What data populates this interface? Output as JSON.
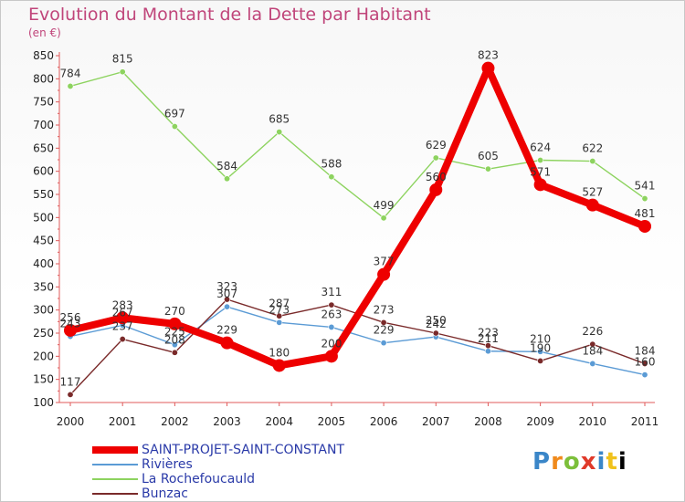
{
  "chart_data": {
    "type": "line",
    "title": "Evolution du Montant de la Dette par Habitant",
    "subtitle": "(en €)",
    "x": [
      "2000",
      "2001",
      "2002",
      "2003",
      "2004",
      "2005",
      "2006",
      "2007",
      "2008",
      "2009",
      "2010",
      "2011"
    ],
    "ylim": [
      100,
      850
    ],
    "yticks": [
      100,
      150,
      200,
      250,
      300,
      350,
      400,
      450,
      500,
      550,
      600,
      650,
      700,
      750,
      800,
      850
    ],
    "grid": false,
    "legend_position": "bottom-left",
    "series": [
      {
        "name": "SAINT-PROJET-SAINT-CONSTANT",
        "color": "#ee0000",
        "values": [
          256,
          283,
          270,
          229,
          180,
          200,
          377,
          560,
          823,
          571,
          527,
          481
        ]
      },
      {
        "name": "Rivières",
        "color": "#5b9bd5",
        "values": [
          243,
          267,
          225,
          307,
          273,
          263,
          229,
          242,
          211,
          210,
          184,
          160
        ]
      },
      {
        "name": "La Rochefoucauld",
        "color": "#8dd35f",
        "values": [
          784,
          815,
          697,
          584,
          685,
          588,
          499,
          629,
          605,
          624,
          622,
          541
        ]
      },
      {
        "name": "Bunzac",
        "color": "#7a2a2a",
        "values": [
          117,
          237,
          208,
          323,
          287,
          311,
          273,
          250,
          223,
          190,
          226,
          184
        ]
      }
    ]
  },
  "branding": {
    "logo_letters": [
      "P",
      "r",
      "o",
      "x",
      "i",
      "t",
      "i"
    ]
  }
}
